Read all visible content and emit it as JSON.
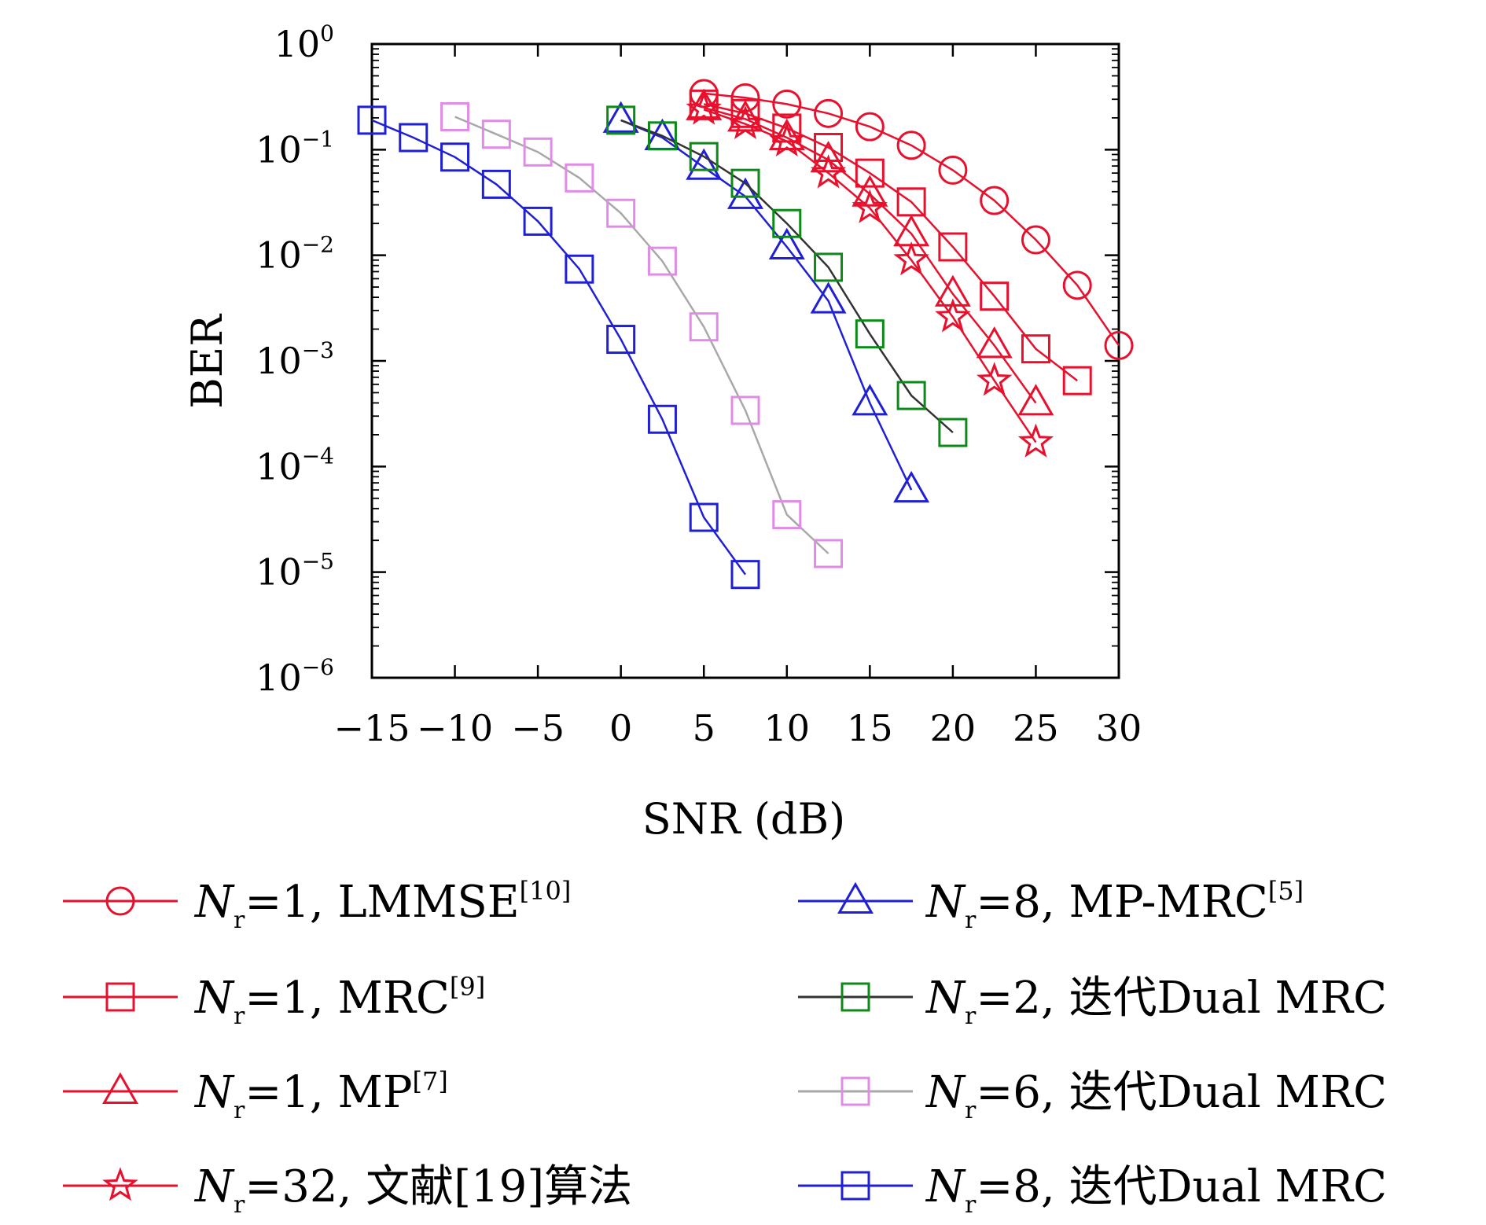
{
  "chart_data": {
    "type": "line",
    "title": "",
    "xlabel": "SNR (dB)",
    "ylabel": "BER",
    "xlim": [
      -15,
      30
    ],
    "ylim": [
      1e-06,
      1
    ],
    "yscale": "log",
    "grid": false,
    "legend_position": "bottom",
    "x_ticks": [
      -15,
      -10,
      -5,
      0,
      5,
      10,
      15,
      20,
      25,
      30
    ],
    "x_tick_labels": [
      "−15",
      "−10",
      "−5",
      "0",
      "5",
      "10",
      "15",
      "20",
      "25",
      "30"
    ],
    "y_ticks": [
      {
        "base": "10",
        "exp": "0",
        "value": 1
      },
      {
        "base": "10",
        "exp": "−1",
        "value": 0.1
      },
      {
        "base": "10",
        "exp": "−2",
        "value": 0.01
      },
      {
        "base": "10",
        "exp": "−3",
        "value": 0.001
      },
      {
        "base": "10",
        "exp": "−4",
        "value": 0.0001
      },
      {
        "base": "10",
        "exp": "−5",
        "value": 1e-05
      },
      {
        "base": "10",
        "exp": "−6",
        "value": 1e-06
      }
    ],
    "series": [
      {
        "legend": {
          "sym": "N",
          "sub": "r",
          "text": "=1, LMMSE",
          "ref": "[10]"
        },
        "color": "#e8112d",
        "marker": "circle",
        "marker_color": "#e8112d",
        "x": [
          5,
          7.5,
          10,
          12.5,
          15,
          17.5,
          20,
          22.5,
          25,
          27.5,
          30
        ],
        "y": [
          0.34,
          0.31,
          0.27,
          0.22,
          0.165,
          0.11,
          0.064,
          0.033,
          0.014,
          0.0052,
          0.0014
        ]
      },
      {
        "legend": {
          "sym": "N",
          "sub": "r",
          "text": "=1, MRC",
          "ref": "[9]"
        },
        "color": "#e8112d",
        "marker": "square",
        "marker_color": "#e8112d",
        "x": [
          5,
          7.5,
          10,
          12.5,
          15,
          17.5,
          20,
          22.5,
          25,
          27.5
        ],
        "y": [
          0.27,
          0.22,
          0.16,
          0.105,
          0.06,
          0.032,
          0.012,
          0.0041,
          0.0013,
          0.00065
        ]
      },
      {
        "legend": {
          "sym": "N",
          "sub": "r",
          "text": "=1, MP",
          "ref": "[7]"
        },
        "color": "#e8112d",
        "marker": "triangle",
        "marker_color": "#e8112d",
        "x": [
          5,
          7.5,
          10,
          12.5,
          15,
          17.5,
          20,
          22.5,
          25
        ],
        "y": [
          0.25,
          0.195,
          0.13,
          0.08,
          0.038,
          0.016,
          0.0043,
          0.0014,
          0.0004
        ]
      },
      {
        "legend": {
          "sym": "N",
          "sub": "r",
          "text": "=32, 文献[19]算法",
          "ref": ""
        },
        "color": "#e8112d",
        "marker": "star",
        "marker_color": "#e8112d",
        "x": [
          5,
          7.5,
          10,
          12.5,
          15,
          17.5,
          20,
          22.5,
          25
        ],
        "y": [
          0.24,
          0.175,
          0.12,
          0.06,
          0.028,
          0.009,
          0.0026,
          0.00065,
          0.00017
        ]
      },
      {
        "legend": {
          "sym": "N",
          "sub": "r",
          "text": "=8, MP-MRC",
          "ref": "[5]"
        },
        "color": "#1f1fd6",
        "marker": "triangle",
        "marker_color": "#1f1fd6",
        "x": [
          0,
          2.5,
          5,
          7.5,
          10,
          12.5,
          15,
          17.5
        ],
        "y": [
          0.19,
          0.13,
          0.068,
          0.036,
          0.012,
          0.0037,
          0.0004,
          6e-05
        ]
      },
      {
        "legend": {
          "sym": "N",
          "sub": "r",
          "text": "=2, 迭代Dual MRC",
          "ref": ""
        },
        "color": "#333333",
        "marker": "square",
        "marker_color": "#0c8a17",
        "x": [
          0,
          2.5,
          5,
          7.5,
          10,
          12.5,
          15,
          17.5,
          20
        ],
        "y": [
          0.19,
          0.135,
          0.086,
          0.048,
          0.02,
          0.0077,
          0.0018,
          0.00047,
          0.00021
        ]
      },
      {
        "legend": {
          "sym": "N",
          "sub": "r",
          "text": "=6, 迭代Dual MRC",
          "ref": ""
        },
        "color": "#a8a8a8",
        "marker": "square",
        "marker_color": "#e08ce6",
        "x": [
          -10,
          -7.5,
          -5,
          -2.5,
          0,
          2.5,
          5,
          7.5,
          10,
          12.5
        ],
        "y": [
          0.205,
          0.14,
          0.095,
          0.054,
          0.025,
          0.0088,
          0.0021,
          0.00034,
          3.5e-05,
          1.5e-05
        ]
      },
      {
        "legend": {
          "sym": "N",
          "sub": "r",
          "text": "=8, 迭代Dual MRC",
          "ref": ""
        },
        "color": "#1f1fd6",
        "marker": "square",
        "marker_color": "#1f1fd6",
        "x": [
          -15,
          -12.5,
          -10,
          -7.5,
          -5,
          -2.5,
          0,
          2.5,
          5,
          7.5
        ],
        "y": [
          0.19,
          0.13,
          0.085,
          0.047,
          0.021,
          0.0074,
          0.0016,
          0.00028,
          3.3e-05,
          9.5e-06
        ]
      }
    ]
  }
}
